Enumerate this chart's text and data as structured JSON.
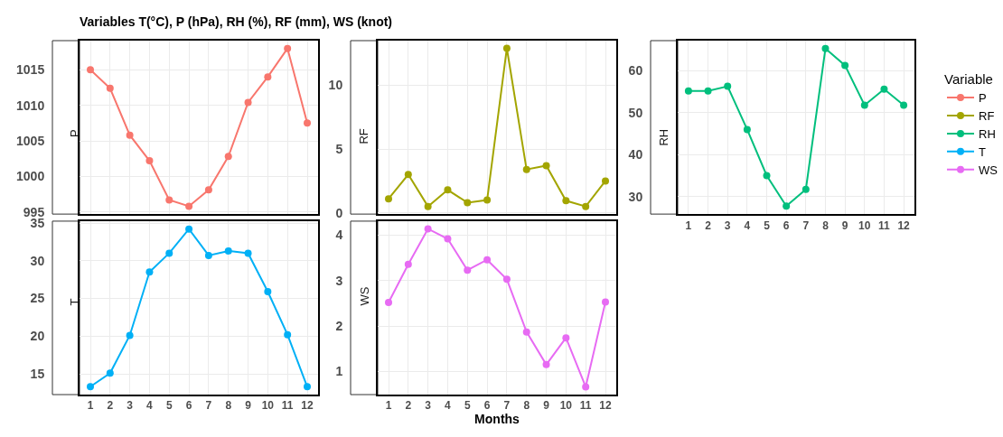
{
  "chart_data": [
    {
      "type": "line",
      "title": "Variables T(°C), P (hPa), RH (%), RF (mm), WS (knot)",
      "ylabel": "P",
      "legend_title": "Variable",
      "legend": "right",
      "grid": true,
      "marker": "circle",
      "line_style": "solid",
      "tick_labels": "y",
      "x": [
        1,
        2,
        3,
        4,
        5,
        6,
        7,
        8,
        9,
        10,
        11,
        12
      ],
      "xlim": [
        0.45,
        12.55
      ],
      "xticks": [
        1,
        2,
        3,
        4,
        5,
        6,
        7,
        8,
        9,
        10,
        11,
        12
      ],
      "series": [
        {
          "name": "P",
          "color": "#f8766d",
          "values": [
            1015.0,
            1012.4,
            1005.8,
            1002.2,
            996.7,
            995.8,
            998.1,
            1002.8,
            1010.4,
            1014.0,
            1018.0,
            1007.5
          ]
        }
      ],
      "ylim": [
        994.7,
        1019.1
      ],
      "yticks": [
        995,
        1000,
        1005,
        1010,
        1015
      ]
    },
    {
      "type": "line",
      "ylabel": "RF",
      "legend": "right",
      "grid": true,
      "marker": "circle",
      "line_style": "solid",
      "tick_labels": "y",
      "x": [
        1,
        2,
        3,
        4,
        5,
        6,
        7,
        8,
        9,
        10,
        11,
        12
      ],
      "xlim": [
        0.45,
        12.55
      ],
      "xticks": [
        1,
        2,
        3,
        4,
        5,
        6,
        7,
        8,
        9,
        10,
        11,
        12
      ],
      "series": [
        {
          "name": "RF",
          "color": "#a3a500",
          "values": [
            1.1,
            3.0,
            0.5,
            1.8,
            0.8,
            1.0,
            12.9,
            3.4,
            3.7,
            0.95,
            0.5,
            2.5
          ]
        }
      ],
      "ylim": [
        -0.1,
        13.5
      ],
      "yticks": [
        0,
        5,
        10
      ]
    },
    {
      "type": "line",
      "ylabel": "RH",
      "legend": "right",
      "grid": true,
      "marker": "circle",
      "line_style": "solid",
      "x": [
        1,
        2,
        3,
        4,
        5,
        6,
        7,
        8,
        9,
        10,
        11,
        12
      ],
      "xlim": [
        0.45,
        12.55
      ],
      "xticks": [
        1,
        2,
        3,
        4,
        5,
        6,
        7,
        8,
        9,
        10,
        11,
        12
      ],
      "series": [
        {
          "name": "RH",
          "color": "#00bf7d",
          "values": [
            55.2,
            55.2,
            56.3,
            46.0,
            35.0,
            27.7,
            31.7,
            65.3,
            61.3,
            51.8,
            55.6,
            51.8
          ]
        }
      ],
      "ylim": [
        25.8,
        67.2
      ],
      "yticks": [
        30,
        40,
        50,
        60
      ]
    },
    {
      "type": "line",
      "ylabel": "T",
      "legend": "right",
      "grid": true,
      "marker": "circle",
      "line_style": "solid",
      "x": [
        1,
        2,
        3,
        4,
        5,
        6,
        7,
        8,
        9,
        10,
        11,
        12
      ],
      "xlim": [
        0.45,
        12.55
      ],
      "xticks": [
        1,
        2,
        3,
        4,
        5,
        6,
        7,
        8,
        9,
        10,
        11,
        12
      ],
      "series": [
        {
          "name": "T",
          "color": "#00b0f6",
          "values": [
            13.3,
            15.1,
            20.1,
            28.5,
            31.0,
            34.2,
            30.7,
            31.3,
            31.0,
            25.9,
            20.2,
            13.3
          ]
        }
      ],
      "ylim": [
        12.25,
        35.25
      ],
      "yticks": [
        15,
        20,
        25,
        30,
        35
      ]
    },
    {
      "type": "line",
      "ylabel": "WS",
      "xlabel": "Months",
      "legend": "right",
      "grid": true,
      "marker": "circle",
      "line_style": "solid",
      "x": [
        1,
        2,
        3,
        4,
        5,
        6,
        7,
        8,
        9,
        10,
        11,
        12
      ],
      "xlim": [
        0.45,
        12.55
      ],
      "xticks": [
        1,
        2,
        3,
        4,
        5,
        6,
        7,
        8,
        9,
        10,
        11,
        12
      ],
      "series": [
        {
          "name": "WS",
          "color": "#e76bf3",
          "values": [
            2.52,
            3.36,
            4.14,
            3.92,
            3.23,
            3.46,
            3.03,
            1.87,
            1.15,
            1.74,
            0.66,
            2.53
          ]
        }
      ],
      "ylim": [
        0.49,
        4.31
      ],
      "yticks": [
        1,
        2,
        3,
        4
      ]
    }
  ]
}
